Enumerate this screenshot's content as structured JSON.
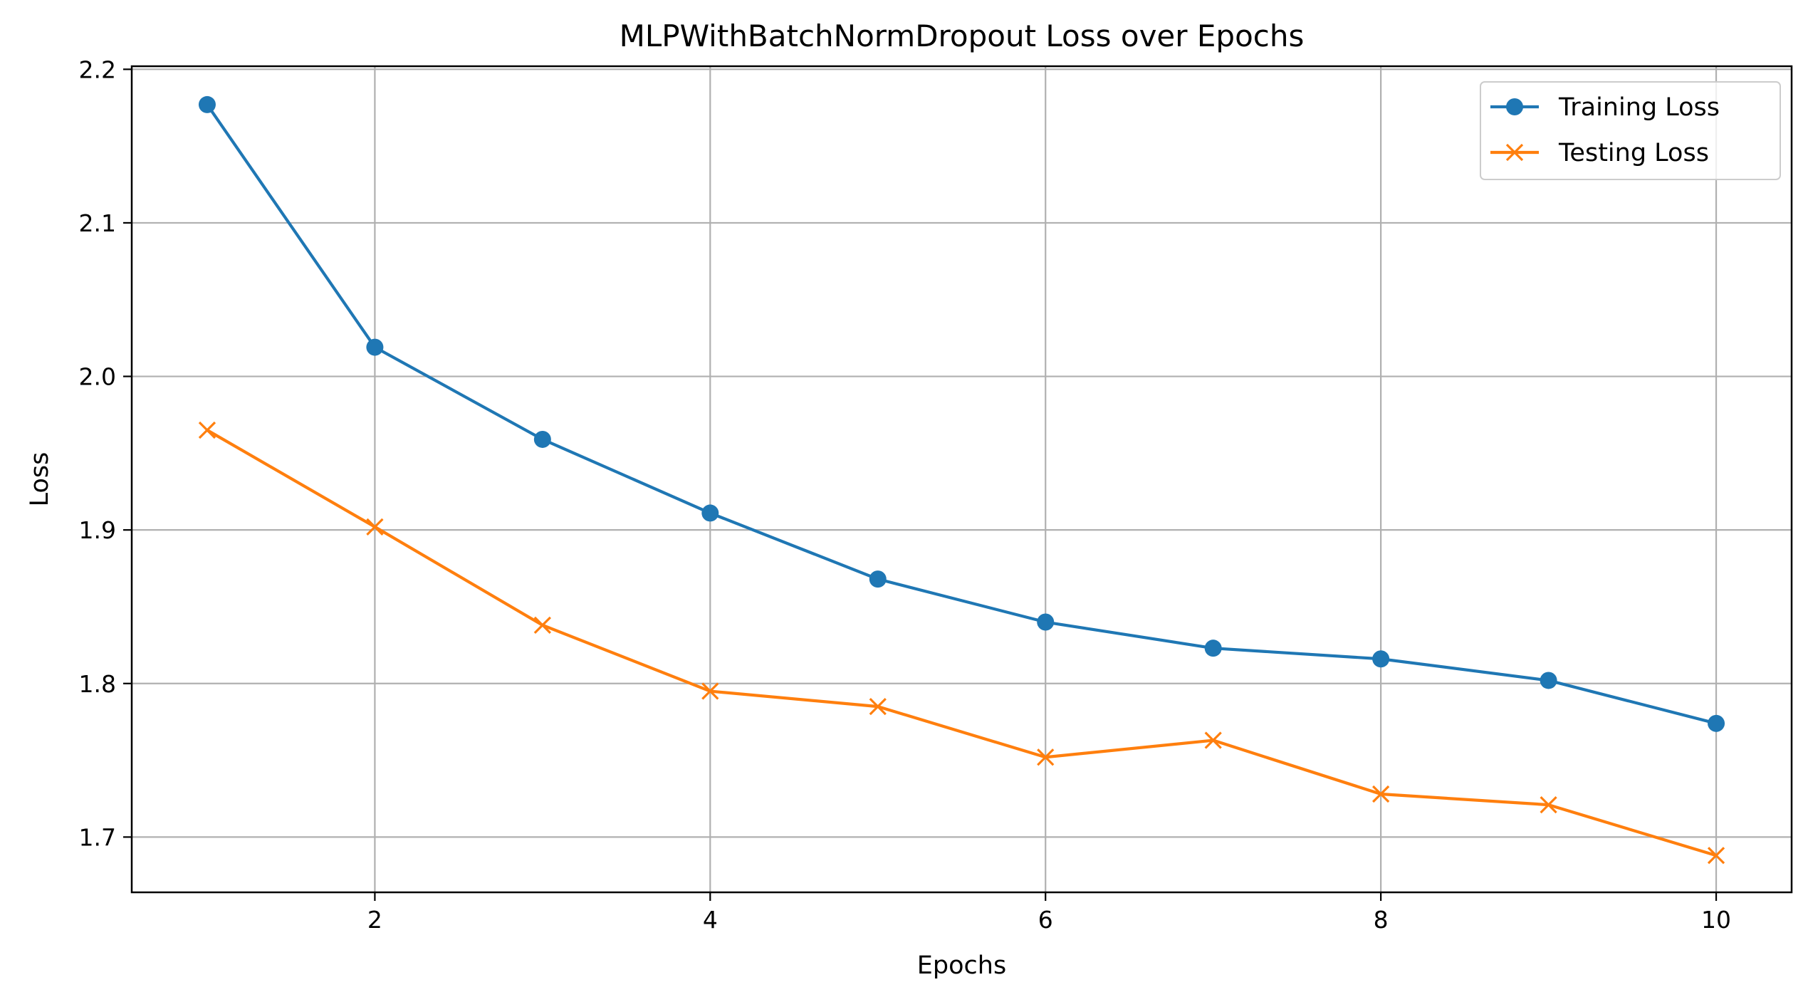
{
  "chart_data": {
    "type": "line",
    "title": "MLPWithBatchNormDropout Loss over Epochs",
    "xlabel": "Epochs",
    "ylabel": "Loss",
    "x": [
      1,
      2,
      3,
      4,
      5,
      6,
      7,
      8,
      9,
      10
    ],
    "xlim": [
      0.55,
      10.45
    ],
    "ylim": [
      1.664,
      2.202
    ],
    "xticks": [
      2,
      4,
      6,
      8,
      10
    ],
    "yticks": [
      1.7,
      1.8,
      1.9,
      2.0,
      2.1,
      2.2
    ],
    "xtick_labels": [
      "2",
      "4",
      "6",
      "8",
      "10"
    ],
    "ytick_labels": [
      "1.7",
      "1.8",
      "1.9",
      "2.0",
      "2.1",
      "2.2"
    ],
    "grid": true,
    "legend_position": "top-right",
    "series": [
      {
        "name": "Training Loss",
        "marker": "circle",
        "color": "#1f77b4",
        "values": [
          2.177,
          2.019,
          1.959,
          1.911,
          1.868,
          1.84,
          1.823,
          1.816,
          1.802,
          1.774
        ]
      },
      {
        "name": "Testing Loss",
        "marker": "x",
        "color": "#ff7f0e",
        "values": [
          1.965,
          1.902,
          1.838,
          1.795,
          1.785,
          1.752,
          1.763,
          1.728,
          1.721,
          1.688
        ]
      }
    ]
  }
}
